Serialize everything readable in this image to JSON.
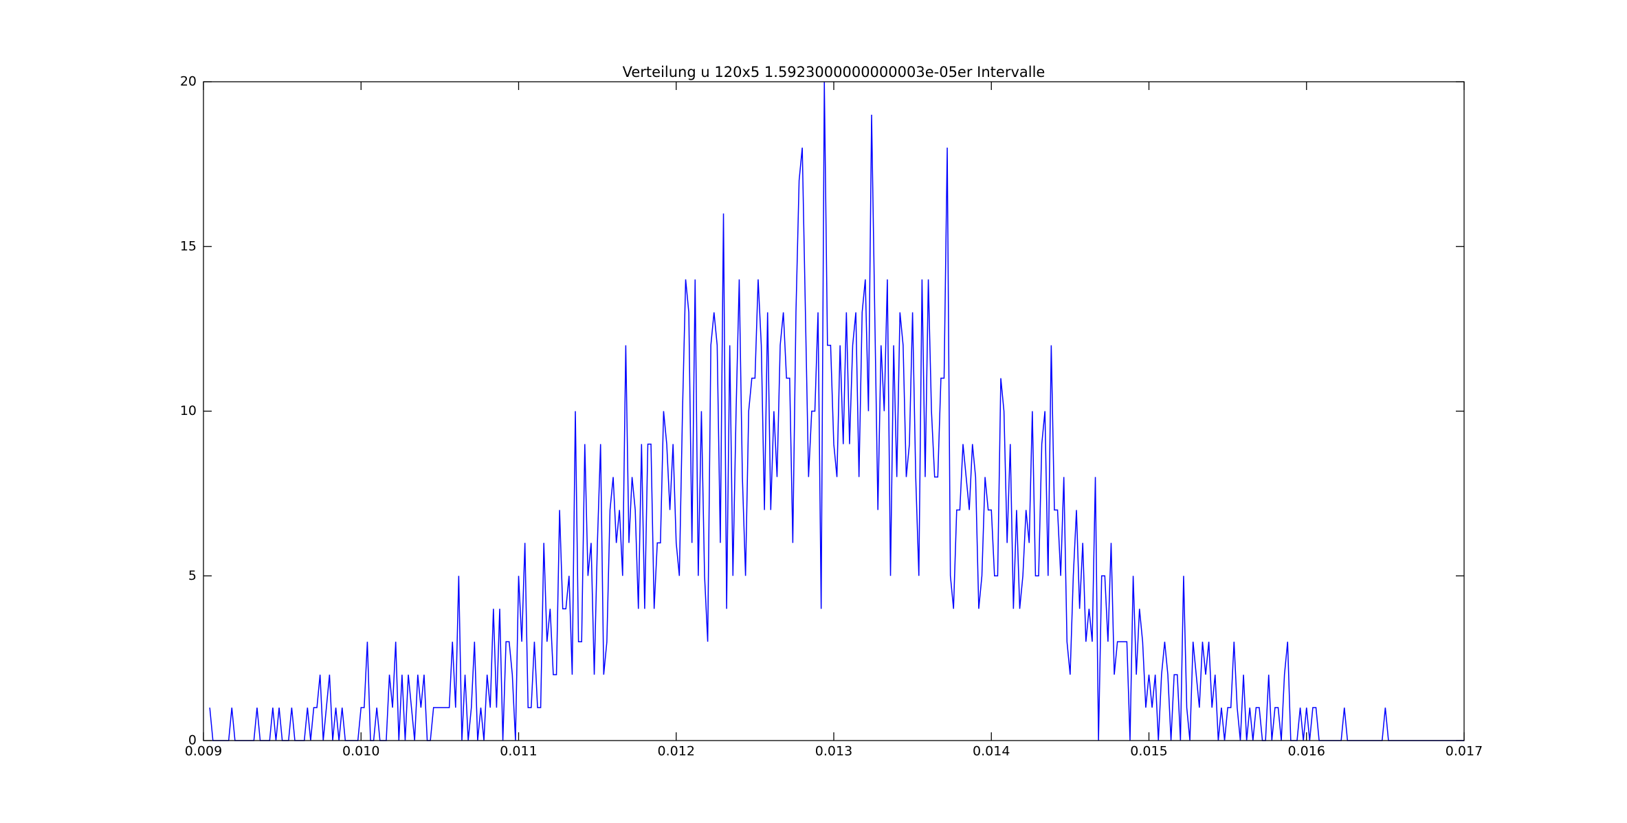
{
  "chart_data": {
    "type": "line",
    "title": "Verteilung u 120x5 1.5923000000000003e-05er Intervalle",
    "color": "#0000ff",
    "xlim": [
      0.009,
      0.017
    ],
    "xticks": [
      0.009,
      {
        "value": 0.01,
        "label": "0.010"
      },
      0.011,
      0.012,
      0.013,
      0.014,
      0.015,
      0.016,
      0.017
    ],
    "ylim": [
      0,
      20
    ],
    "yticks": [
      0,
      5,
      10,
      15,
      20
    ],
    "grid": false,
    "x": [
      0.00904,
      0.00906,
      0.00916,
      0.00918,
      0.0092,
      0.00932,
      0.00934,
      0.00936,
      0.00942,
      0.00944,
      0.00946,
      0.00948,
      0.0095,
      0.00954,
      0.00956,
      0.00958,
      0.00964,
      0.00966,
      0.00968,
      0.0097,
      0.00972,
      0.00974,
      0.00976,
      0.00978,
      0.0098,
      0.00982,
      0.00984,
      0.00986,
      0.00988,
      0.0099,
      0.00998,
      0.01,
      0.01002,
      0.01004,
      0.01006,
      0.01008,
      0.0101,
      0.01012,
      0.01016,
      0.01018,
      0.0102,
      0.01022,
      0.01024,
      0.01026,
      0.01028,
      0.0103,
      0.01032,
      0.01034,
      0.01036,
      0.01038,
      0.0104,
      0.01042,
      0.01044,
      0.01046,
      0.01056,
      0.01058,
      0.0106,
      0.01062,
      0.01064,
      0.01066,
      0.01068,
      0.0107,
      0.01072,
      0.01074,
      0.01076,
      0.01078,
      0.0108,
      0.01082,
      0.01084,
      0.01086,
      0.01088,
      0.0109,
      0.01092,
      0.01094,
      0.01096,
      0.01098,
      0.011,
      0.01102,
      0.01104,
      0.01106,
      0.01108,
      0.0111,
      0.01112,
      0.01114,
      0.01116,
      0.01118,
      0.0112,
      0.01122,
      0.01124,
      0.01126,
      0.01128,
      0.0113,
      0.01132,
      0.01134,
      0.01136,
      0.01138,
      0.0114,
      0.01142,
      0.01144,
      0.01146,
      0.01148,
      0.0115,
      0.01152,
      0.01154,
      0.01156,
      0.01158,
      0.0116,
      0.01162,
      0.01164,
      0.01166,
      0.01168,
      0.0117,
      0.01172,
      0.01174,
      0.01176,
      0.01178,
      0.0118,
      0.01182,
      0.01184,
      0.01186,
      0.01188,
      0.0119,
      0.01192,
      0.01194,
      0.01196,
      0.01198,
      0.012,
      0.01202,
      0.01204,
      0.01206,
      0.01208,
      0.0121,
      0.01212,
      0.01214,
      0.01216,
      0.01218,
      0.0122,
      0.01222,
      0.01224,
      0.01226,
      0.01228,
      0.0123,
      0.01232,
      0.01234,
      0.01236,
      0.01238,
      0.0124,
      0.01242,
      0.01244,
      0.01246,
      0.01248,
      0.0125,
      0.01252,
      0.01254,
      0.01256,
      0.01258,
      0.0126,
      0.01262,
      0.01264,
      0.01266,
      0.01268,
      0.0127,
      0.01272,
      0.01274,
      0.01276,
      0.01278,
      0.0128,
      0.01282,
      0.01284,
      0.01286,
      0.01288,
      0.0129,
      0.01292,
      0.01294,
      0.01296,
      0.01298,
      0.013,
      0.01302,
      0.01304,
      0.01306,
      0.01308,
      0.0131,
      0.01312,
      0.01314,
      0.01316,
      0.01318,
      0.0132,
      0.01322,
      0.01324,
      0.01326,
      0.01328,
      0.0133,
      0.01332,
      0.01334,
      0.01336,
      0.01338,
      0.0134,
      0.01342,
      0.01344,
      0.01346,
      0.01348,
      0.0135,
      0.01352,
      0.01354,
      0.01356,
      0.01358,
      0.0136,
      0.01362,
      0.01364,
      0.01366,
      0.01368,
      0.0137,
      0.01372,
      0.01374,
      0.01376,
      0.01378,
      0.0138,
      0.01382,
      0.01384,
      0.01386,
      0.01388,
      0.0139,
      0.01392,
      0.01394,
      0.01396,
      0.01398,
      0.014,
      0.01402,
      0.01404,
      0.01406,
      0.01408,
      0.0141,
      0.01412,
      0.01414,
      0.01416,
      0.01418,
      0.0142,
      0.01422,
      0.01424,
      0.01426,
      0.01428,
      0.0143,
      0.01432,
      0.01434,
      0.01436,
      0.01438,
      0.0144,
      0.01442,
      0.01444,
      0.01446,
      0.01448,
      0.0145,
      0.01452,
      0.01454,
      0.01456,
      0.01458,
      0.0146,
      0.01462,
      0.01464,
      0.01466,
      0.01468,
      0.0147,
      0.01472,
      0.01474,
      0.01476,
      0.01478,
      0.0148,
      0.01482,
      0.01484,
      0.01486,
      0.01488,
      0.0149,
      0.01492,
      0.01494,
      0.01496,
      0.01498,
      0.015,
      0.01502,
      0.01504,
      0.01506,
      0.01508,
      0.0151,
      0.01512,
      0.01514,
      0.01516,
      0.01518,
      0.0152,
      0.01522,
      0.01524,
      0.01526,
      0.01528,
      0.0153,
      0.01532,
      0.01534,
      0.01536,
      0.01538,
      0.0154,
      0.01542,
      0.01544,
      0.01546,
      0.01548,
      0.0155,
      0.01552,
      0.01554,
      0.01556,
      0.01558,
      0.0156,
      0.01562,
      0.01564,
      0.01566,
      0.01568,
      0.0157,
      0.01572,
      0.01574,
      0.01576,
      0.01578,
      0.0158,
      0.01582,
      0.01584,
      0.01586,
      0.01588,
      0.0159,
      0.01592,
      0.01594,
      0.01596,
      0.01598,
      0.016,
      0.01602,
      0.01604,
      0.01606,
      0.01608,
      0.01622,
      0.01624,
      0.01626,
      0.01648,
      0.0165,
      0.01652,
      0.017
    ],
    "values": [
      1,
      0,
      0,
      1,
      0,
      0,
      1,
      0,
      0,
      1,
      0,
      1,
      0,
      0,
      1,
      0,
      0,
      1,
      0,
      1,
      1,
      2,
      0,
      1,
      2,
      0,
      1,
      0,
      1,
      0,
      0,
      1,
      1,
      3,
      0,
      0,
      1,
      0,
      0,
      2,
      1,
      3,
      0,
      2,
      0,
      2,
      1,
      0,
      2,
      1,
      2,
      0,
      0,
      1,
      1,
      3,
      1,
      5,
      0,
      2,
      0,
      1,
      3,
      0,
      1,
      0,
      2,
      1,
      4,
      1,
      4,
      0,
      3,
      3,
      2,
      0,
      5,
      3,
      6,
      1,
      1,
      3,
      1,
      1,
      6,
      3,
      4,
      2,
      2,
      7,
      4,
      4,
      5,
      2,
      10,
      3,
      3,
      9,
      5,
      6,
      2,
      6,
      9,
      2,
      3,
      7,
      8,
      6,
      7,
      5,
      12,
      6,
      8,
      7,
      4,
      9,
      4,
      9,
      9,
      4,
      6,
      6,
      10,
      9,
      7,
      9,
      6,
      5,
      10,
      14,
      13,
      6,
      14,
      5,
      10,
      5,
      3,
      12,
      13,
      12,
      6,
      16,
      4,
      12,
      5,
      10,
      14,
      8,
      5,
      10,
      11,
      11,
      14,
      12,
      7,
      13,
      7,
      10,
      8,
      12,
      13,
      11,
      11,
      6,
      13,
      17,
      18,
      13,
      8,
      10,
      10,
      13,
      4,
      20,
      12,
      12,
      9,
      8,
      12,
      9,
      13,
      9,
      12,
      13,
      8,
      13,
      14,
      10,
      19,
      13,
      7,
      12,
      10,
      14,
      5,
      12,
      8,
      13,
      12,
      8,
      9,
      13,
      8,
      5,
      14,
      8,
      14,
      10,
      8,
      8,
      11,
      11,
      18,
      5,
      4,
      7,
      7,
      9,
      8,
      7,
      9,
      8,
      4,
      5,
      8,
      7,
      7,
      5,
      5,
      11,
      10,
      6,
      9,
      4,
      7,
      4,
      5,
      7,
      6,
      10,
      5,
      5,
      9,
      10,
      5,
      12,
      7,
      7,
      5,
      8,
      3,
      2,
      5,
      7,
      4,
      6,
      3,
      4,
      3,
      8,
      0,
      5,
      5,
      3,
      6,
      2,
      3,
      3,
      3,
      3,
      0,
      5,
      2,
      4,
      3,
      1,
      2,
      1,
      2,
      0,
      2,
      3,
      2,
      0,
      2,
      2,
      0,
      5,
      1,
      0,
      3,
      2,
      1,
      3,
      2,
      3,
      1,
      2,
      0,
      1,
      0,
      1,
      1,
      3,
      1,
      0,
      2,
      0,
      1,
      0,
      1,
      1,
      0,
      0,
      2,
      0,
      1,
      1,
      0,
      2,
      3,
      0,
      0,
      0,
      1,
      0,
      1,
      0,
      1,
      1,
      0,
      0,
      1,
      0,
      0,
      1,
      0,
      0
    ]
  }
}
